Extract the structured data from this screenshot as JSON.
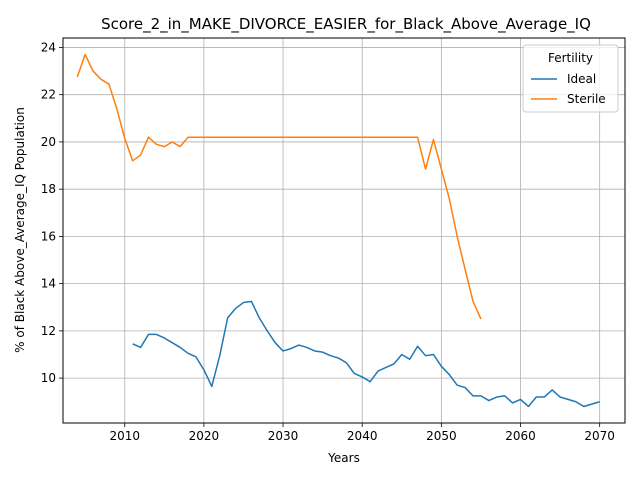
{
  "chart_data": {
    "type": "line",
    "title": "Score_2_in_MAKE_DIVORCE_EASIER_for_Black_Above_Average_IQ",
    "xlabel": "Years",
    "ylabel": "% of Black Above_Average_IQ Population",
    "xlim": [
      2002.2,
      2073.2
    ],
    "ylim": [
      8.1,
      24.4
    ],
    "xticks": [
      2010,
      2020,
      2030,
      2040,
      2050,
      2060,
      2070
    ],
    "yticks": [
      10,
      12,
      14,
      16,
      18,
      20,
      22,
      24
    ],
    "grid": true,
    "legend": {
      "title": "Fertility",
      "position": "top-right"
    },
    "series": [
      {
        "name": "Ideal",
        "color": "#1f77b4",
        "x": [
          2011,
          2012,
          2013,
          2014,
          2015,
          2016,
          2017,
          2018,
          2019,
          2020,
          2021,
          2022,
          2023,
          2024,
          2025,
          2026,
          2027,
          2028,
          2029,
          2030,
          2031,
          2032,
          2033,
          2034,
          2035,
          2036,
          2037,
          2038,
          2039,
          2040,
          2041,
          2042,
          2043,
          2044,
          2045,
          2046,
          2047,
          2048,
          2049,
          2050,
          2051,
          2052,
          2053,
          2054,
          2055,
          2056,
          2057,
          2058,
          2059,
          2060,
          2061,
          2062,
          2063,
          2064,
          2065,
          2066,
          2067,
          2068,
          2069,
          2070
        ],
        "y": [
          11.45,
          11.3,
          11.85,
          11.85,
          11.7,
          11.5,
          11.3,
          11.05,
          10.9,
          10.35,
          9.65,
          10.95,
          12.55,
          12.95,
          13.2,
          13.25,
          12.55,
          12.0,
          11.5,
          11.15,
          11.25,
          11.4,
          11.3,
          11.15,
          11.1,
          10.95,
          10.85,
          10.65,
          10.2,
          10.05,
          9.85,
          10.3,
          10.45,
          10.6,
          11.0,
          10.8,
          11.35,
          10.95,
          11.0,
          10.5,
          10.15,
          9.7,
          9.6,
          9.25,
          9.25,
          9.05,
          9.2,
          9.25,
          8.95,
          9.1,
          8.8,
          9.2,
          9.2,
          9.5,
          9.2,
          9.1,
          9.0,
          8.8,
          8.9,
          9.0
        ]
      },
      {
        "name": "Sterile",
        "color": "#ff7f0e",
        "x": [
          2004,
          2005,
          2006,
          2007,
          2008,
          2009,
          2010,
          2011,
          2012,
          2013,
          2014,
          2015,
          2016,
          2017,
          2018,
          2019,
          2020,
          2021,
          2022,
          2023,
          2024,
          2025,
          2026,
          2027,
          2028,
          2029,
          2030,
          2031,
          2032,
          2033,
          2034,
          2035,
          2036,
          2037,
          2038,
          2039,
          2040,
          2041,
          2042,
          2043,
          2044,
          2045,
          2046,
          2047,
          2048,
          2049,
          2050,
          2051,
          2052,
          2053,
          2054,
          2055
        ],
        "y": [
          22.75,
          23.7,
          23.0,
          22.65,
          22.45,
          21.4,
          20.15,
          19.2,
          19.45,
          20.2,
          19.9,
          19.8,
          20.0,
          19.8,
          20.2,
          20.2,
          20.2,
          20.2,
          20.2,
          20.2,
          20.2,
          20.2,
          20.2,
          20.2,
          20.2,
          20.2,
          20.2,
          20.2,
          20.2,
          20.2,
          20.2,
          20.2,
          20.2,
          20.2,
          20.2,
          20.2,
          20.2,
          20.2,
          20.2,
          20.2,
          20.2,
          20.2,
          20.2,
          20.2,
          18.85,
          20.1,
          18.85,
          17.6,
          16.0,
          14.6,
          13.25,
          12.5
        ]
      }
    ]
  }
}
